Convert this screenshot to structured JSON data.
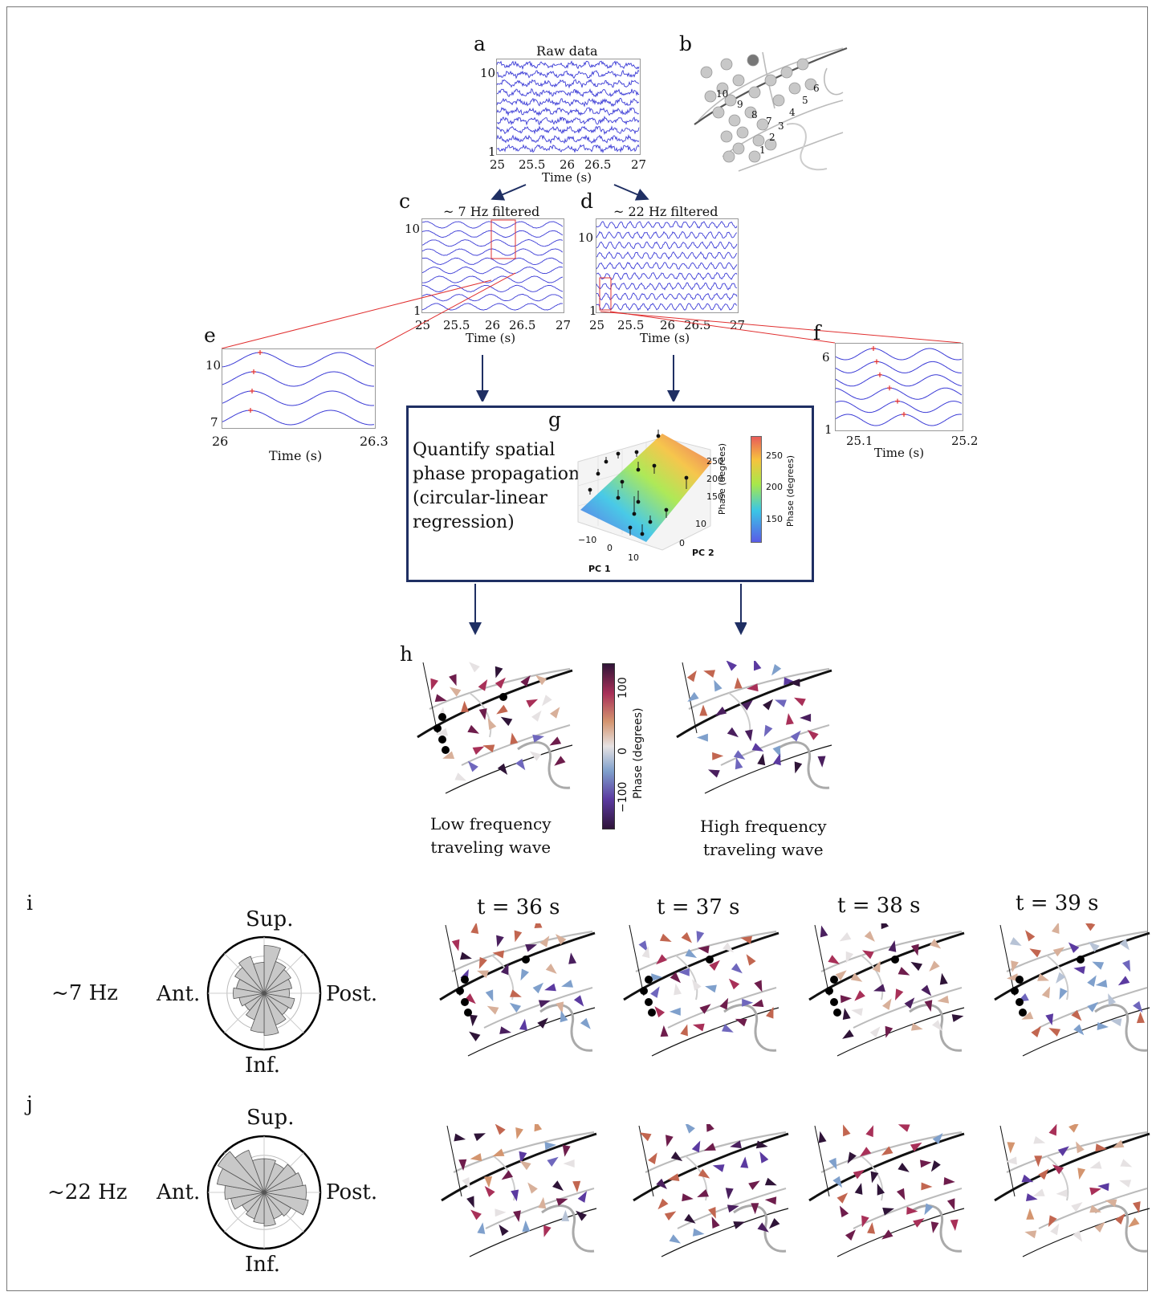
{
  "colors": {
    "trace": "#3b3bd6",
    "marker": "#e03030",
    "arrow_navy": "#1f2f63",
    "brain_gray": "#b5b5b5",
    "rose_fill": "#c8c8c8"
  },
  "panel_a": {
    "letter": "a",
    "title": "Raw data",
    "y_top": "10",
    "y_bottom": "1",
    "x_ticks": [
      "25",
      "25.5",
      "26",
      "26.5",
      "27"
    ],
    "xlabel": "Time (s)"
  },
  "panel_b": {
    "letter": "b",
    "electrodes": [
      "10",
      "9",
      "8",
      "7",
      "6",
      "5",
      "4",
      "3",
      "2",
      "1"
    ]
  },
  "panel_c": {
    "letter": "c",
    "title": "~ 7 Hz filtered",
    "y_top": "10",
    "y_bottom": "1",
    "x_ticks": [
      "25",
      "25.5",
      "26",
      "26.5",
      "27"
    ],
    "xlabel": "Time (s)"
  },
  "panel_d": {
    "letter": "d",
    "title": "~ 22 Hz filtered",
    "y_top": "10",
    "y_bottom": "1",
    "x_ticks": [
      "25",
      "25.5",
      "26",
      "26.5",
      "27"
    ],
    "xlabel": "Time (s)"
  },
  "panel_e": {
    "letter": "e",
    "y_top": "10",
    "y_bottom": "7",
    "x_ticks": [
      "26",
      "26.3"
    ],
    "xlabel": "Time (s)"
  },
  "panel_f": {
    "letter": "f",
    "y_top": "6",
    "y_bottom": "1",
    "x_ticks": [
      "25.1",
      "25.2"
    ],
    "xlabel": "Time (s)"
  },
  "panel_g": {
    "letter": "g",
    "text": [
      "Quantify spatial",
      "phase propagation",
      "(circular-linear",
      "regression)"
    ],
    "z_ticks": [
      "250",
      "200",
      "150"
    ],
    "z_label": "Phase (degrees)",
    "pc1_ticks": [
      "−10",
      "0",
      "10"
    ],
    "pc2_ticks": [
      "10",
      "0"
    ],
    "pc1_label": "PC 1",
    "pc2_label": "PC 2",
    "cbar_ticks": [
      "250",
      "200",
      "150"
    ],
    "cbar_label": "Phase (degrees)"
  },
  "panel_h": {
    "letter": "h",
    "low_caption": [
      "Low frequency",
      "traveling wave"
    ],
    "high_caption": [
      "High frequency",
      "traveling wave"
    ],
    "cbar_ticks": [
      "100",
      "0",
      "−100"
    ],
    "cbar_label": "Phase (degrees)"
  },
  "panel_i": {
    "letter": "i",
    "freq": "~7 Hz",
    "rose": {
      "sup": "Sup.",
      "inf": "Inf.",
      "ant": "Ant.",
      "post": "Post."
    },
    "times": [
      "t = 36 s",
      "t = 37 s",
      "t = 38 s",
      "t = 39 s"
    ]
  },
  "panel_j": {
    "letter": "j",
    "freq": "~22 Hz",
    "rose": {
      "sup": "Sup.",
      "inf": "Inf.",
      "ant": "Ant.",
      "post": "Post."
    }
  }
}
